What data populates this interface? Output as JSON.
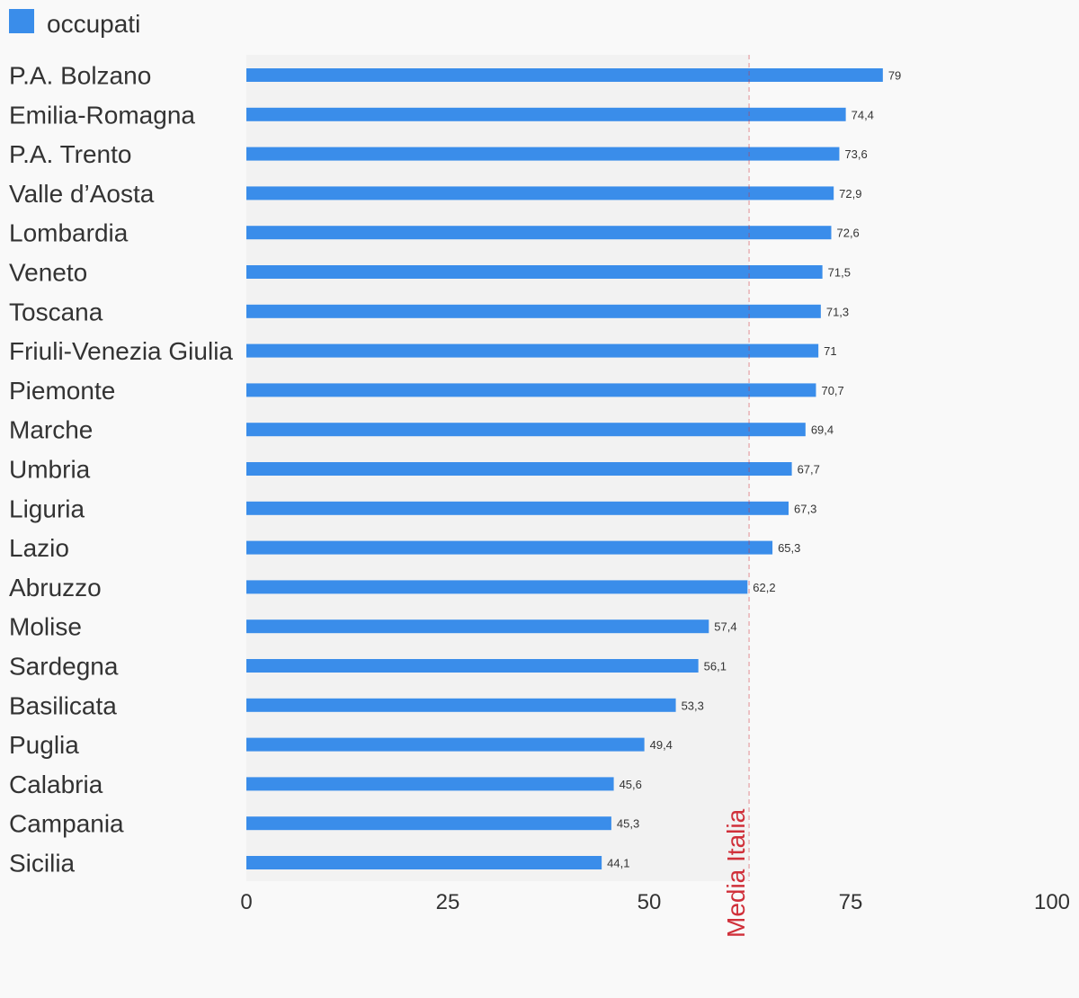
{
  "chart_data": {
    "type": "bar",
    "orientation": "horizontal",
    "categories": [
      "P.A. Bolzano",
      "Emilia-Romagna",
      "P.A. Trento",
      "Valle d’Aosta",
      "Lombardia",
      "Veneto",
      "Toscana",
      "Friuli-Venezia Giulia",
      "Piemonte",
      "Marche",
      "Umbria",
      "Liguria",
      "Lazio",
      "Abruzzo",
      "Molise",
      "Sardegna",
      "Basilicata",
      "Puglia",
      "Calabria",
      "Campania",
      "Sicilia"
    ],
    "series": [
      {
        "name": "occupati",
        "color": "#3a8dea",
        "values": [
          79,
          74.4,
          73.6,
          72.9,
          72.6,
          71.5,
          71.3,
          71,
          70.7,
          69.4,
          67.7,
          67.3,
          65.3,
          62.2,
          57.4,
          56.1,
          53.3,
          49.4,
          45.6,
          45.3,
          44.1
        ]
      }
    ],
    "value_labels": [
      "79",
      "74,4",
      "73,6",
      "72,9",
      "72,6",
      "71,5",
      "71,3",
      "71",
      "70,7",
      "69,4",
      "67,7",
      "67,3",
      "65,3",
      "62,2",
      "57,4",
      "56,1",
      "53,3",
      "49,4",
      "45,6",
      "45,3",
      "44,1"
    ],
    "xlim": [
      0,
      100
    ],
    "x_ticks": [
      0,
      25,
      50,
      75,
      100
    ],
    "x_tick_labels": [
      "0",
      "25",
      "50",
      "75",
      "100"
    ],
    "legend": {
      "position": "top-left"
    },
    "reference_line": {
      "label": "Media Italia",
      "value": 62.4,
      "color": "#d0303a",
      "style": "dashed"
    },
    "shaded_band": {
      "from": 0,
      "to": 62.4,
      "color": "#f2f2f2"
    },
    "grid": false
  }
}
